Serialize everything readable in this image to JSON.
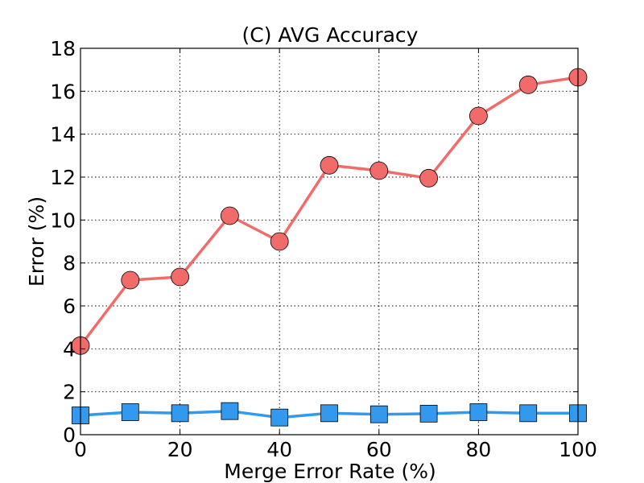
{
  "chart_data": {
    "type": "line",
    "title": "(C) AVG Accuracy",
    "xlabel": "Merge Error Rate (%)",
    "ylabel": "Error (%)",
    "xlim": [
      0,
      100
    ],
    "ylim": [
      0,
      18
    ],
    "xticks": [
      0,
      20,
      40,
      60,
      80,
      100
    ],
    "yticks": [
      0,
      2,
      4,
      6,
      8,
      10,
      12,
      14,
      16,
      18
    ],
    "grid": true,
    "x": [
      0,
      10,
      20,
      30,
      40,
      50,
      60,
      70,
      80,
      90,
      100
    ],
    "series": [
      {
        "values": [
          4.15,
          7.2,
          7.35,
          10.2,
          9.0,
          12.55,
          12.3,
          11.95,
          14.85,
          16.3,
          16.65
        ],
        "color": "#f26b6b",
        "marker": "circle"
      },
      {
        "values": [
          0.9,
          1.05,
          1.0,
          1.1,
          0.8,
          1.0,
          0.95,
          0.98,
          1.05,
          1.0,
          1.0
        ],
        "color": "#3399ee",
        "marker": "square"
      }
    ]
  }
}
